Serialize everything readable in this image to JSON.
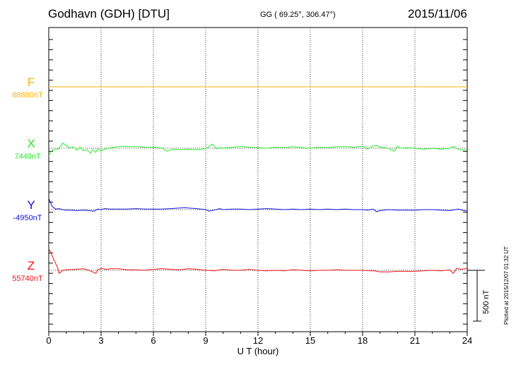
{
  "header": {
    "title": "Godhavn (GDH)  [DTU]",
    "coords": "GG ( 69.25°, 306.47°)",
    "date": "2015/11/06"
  },
  "footer": "Plotted at 2015/12/07 01:32 UT",
  "scale_label": "500 nT",
  "colors": {
    "F": "#ffb000",
    "X": "#22ee22",
    "Y": "#1111dd",
    "Z": "#ee1111"
  },
  "chart_data": {
    "type": "line",
    "xlabel": "U T (hour)",
    "xlim": [
      0,
      24
    ],
    "x_ticks": [
      "0",
      "3",
      "6",
      "9",
      "12",
      "15",
      "18",
      "21",
      "24"
    ],
    "scale_nT": 500,
    "channels": [
      {
        "name": "F",
        "baseline_label": "88880nT",
        "x": [
          0,
          24
        ],
        "values": [
          0,
          0
        ]
      },
      {
        "name": "X",
        "baseline_label": "7440nT",
        "x": [
          0,
          0.1,
          0.2,
          0.4,
          0.6,
          0.8,
          1.0,
          1.2,
          1.4,
          1.6,
          1.8,
          2.0,
          2.2,
          2.4,
          2.5,
          2.7,
          2.8,
          3.0,
          3.2,
          3.4,
          3.6,
          3.8,
          4.0,
          4.3,
          4.6,
          5.0,
          5.5,
          6.0,
          6.5,
          6.8,
          7.0,
          7.2,
          7.5,
          8.0,
          8.5,
          9.0,
          9.4,
          9.5,
          9.6,
          9.8,
          10.0,
          10.5,
          11.0,
          11.5,
          12.0,
          12.5,
          13.0,
          13.5,
          14.0,
          14.5,
          15.0,
          15.5,
          16.0,
          16.5,
          17.0,
          17.5,
          18.0,
          18.3,
          18.5,
          18.8,
          19.0,
          19.5,
          19.8,
          20.0,
          20.2,
          20.5,
          21.0,
          21.5,
          22.0,
          22.5,
          23.0,
          23.2,
          23.4,
          23.6,
          24.0
        ],
        "values": [
          -75,
          -40,
          -20,
          -15,
          0,
          50,
          30,
          0,
          15,
          -20,
          10,
          -25,
          -15,
          -50,
          -15,
          -40,
          -5,
          -30,
          -10,
          0,
          5,
          10,
          15,
          20,
          15,
          15,
          10,
          10,
          0,
          -30,
          -15,
          -10,
          -15,
          -10,
          -15,
          -5,
          40,
          20,
          -5,
          5,
          0,
          10,
          15,
          10,
          5,
          0,
          10,
          5,
          15,
          5,
          0,
          10,
          5,
          15,
          15,
          10,
          20,
          -10,
          20,
          25,
          10,
          0,
          -30,
          20,
          0,
          5,
          0,
          -10,
          0,
          -10,
          0,
          20,
          -5,
          -15,
          -15
        ]
      },
      {
        "name": "Y",
        "baseline_label": "-4950nT",
        "x": [
          0,
          0.1,
          0.2,
          0.4,
          0.6,
          0.8,
          1.0,
          1.3,
          1.6,
          2.0,
          2.3,
          2.6,
          2.8,
          3.0,
          3.2,
          3.5,
          4.0,
          4.5,
          5.0,
          5.5,
          6.0,
          6.5,
          7.0,
          7.5,
          7.8,
          8.0,
          8.5,
          9.0,
          9.2,
          9.5,
          9.8,
          10.0,
          10.5,
          11.0,
          11.5,
          12.0,
          12.5,
          13.0,
          13.5,
          14.0,
          14.5,
          15.0,
          15.5,
          16.0,
          16.5,
          17.0,
          17.5,
          18.0,
          18.3,
          18.6,
          18.8,
          19.0,
          19.5,
          20.0,
          20.5,
          21.0,
          21.5,
          22.0,
          22.5,
          23.0,
          23.5,
          23.8,
          24.0
        ],
        "values": [
          110,
          70,
          30,
          5,
          10,
          0,
          -5,
          -5,
          -10,
          -5,
          -10,
          -15,
          5,
          0,
          10,
          5,
          5,
          5,
          10,
          5,
          5,
          5,
          10,
          15,
          20,
          15,
          10,
          0,
          -15,
          -5,
          10,
          0,
          5,
          5,
          0,
          5,
          10,
          5,
          0,
          5,
          0,
          5,
          0,
          5,
          0,
          5,
          0,
          0,
          -5,
          5,
          -20,
          -10,
          0,
          -5,
          -5,
          -5,
          0,
          0,
          -5,
          -10,
          5,
          -10,
          -15
        ]
      },
      {
        "name": "Z",
        "baseline_label": "55740nT",
        "x": [
          0,
          0.1,
          0.3,
          0.5,
          0.6,
          0.8,
          1.0,
          1.5,
          2.0,
          2.3,
          2.5,
          2.7,
          2.8,
          3.0,
          3.3,
          3.6,
          4.0,
          4.5,
          5.0,
          5.5,
          6.0,
          6.5,
          7.0,
          7.5,
          8.0,
          8.5,
          9.0,
          9.5,
          10.0,
          10.5,
          11.0,
          11.5,
          12.0,
          12.5,
          13.0,
          13.5,
          14.0,
          14.5,
          15.0,
          15.5,
          16.0,
          16.5,
          17.0,
          17.5,
          18.0,
          18.5,
          18.7,
          19.0,
          19.5,
          20.0,
          20.5,
          21.0,
          21.5,
          22.0,
          22.5,
          23.0,
          23.2,
          23.4,
          23.6,
          24.0
        ],
        "values": [
          210,
          180,
          100,
          30,
          -30,
          0,
          5,
          10,
          15,
          0,
          -15,
          -30,
          5,
          20,
          10,
          15,
          15,
          5,
          5,
          0,
          10,
          15,
          10,
          5,
          15,
          10,
          0,
          -5,
          10,
          0,
          0,
          10,
          0,
          -5,
          0,
          -5,
          5,
          0,
          -5,
          0,
          0,
          5,
          0,
          0,
          0,
          -5,
          -5,
          -15,
          -15,
          -10,
          -10,
          -10,
          -5,
          0,
          -5,
          5,
          -30,
          20,
          10,
          20
        ]
      }
    ]
  }
}
